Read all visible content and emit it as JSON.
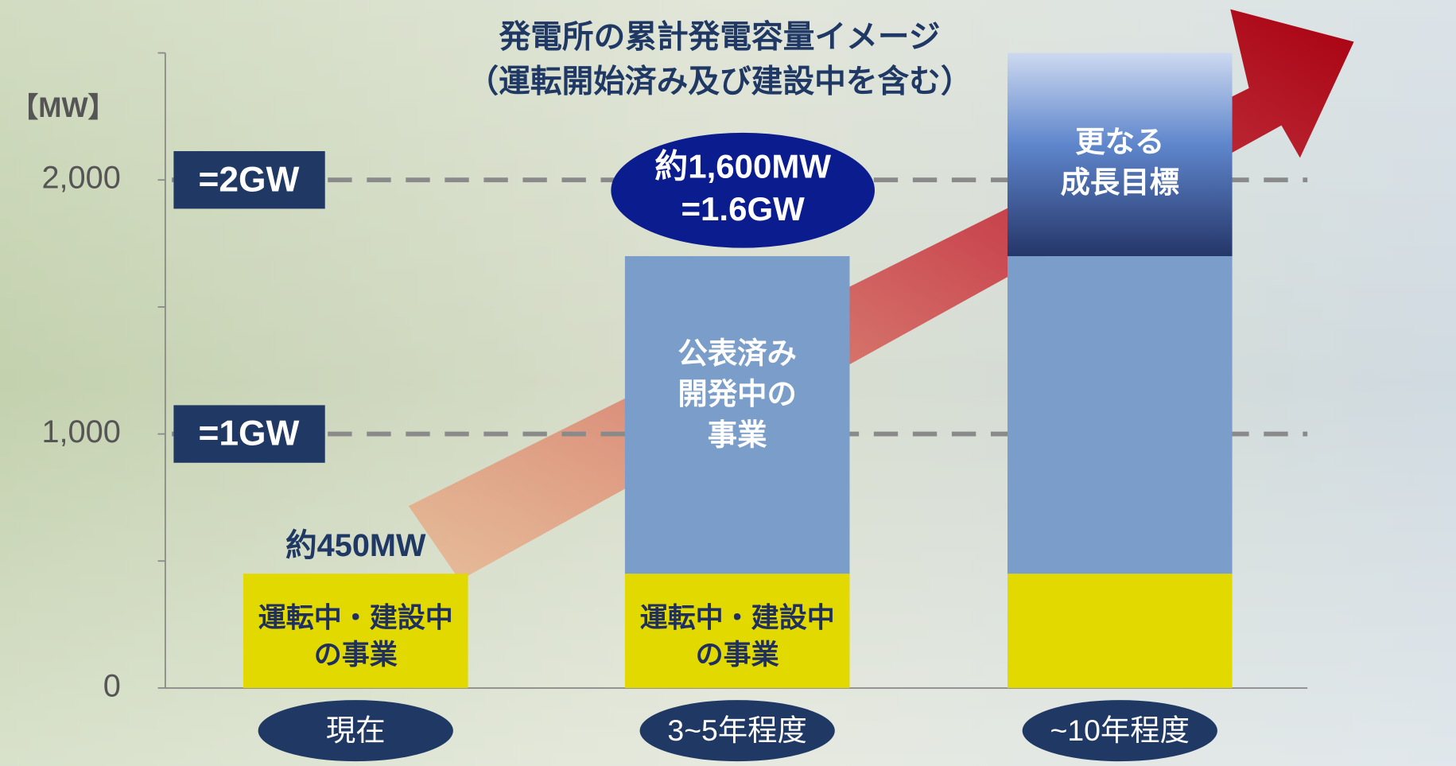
{
  "chart_data": {
    "type": "stacked_bar",
    "title": [
      "発電所の累計発電容量イメージ",
      "（運転開始済み及び建設中を含む）"
    ],
    "y_unit": "【MW】",
    "categories": [
      "現在",
      "3~5年程度",
      "~10年程度"
    ],
    "series": [
      {
        "color": "#e1d900",
        "values": [
          450,
          450,
          450
        ],
        "labels": [
          [
            "運転中・建設中",
            "の事業"
          ],
          [
            "運転中・建設中",
            "の事業"
          ],
          null
        ]
      },
      {
        "color": "#7b9dca",
        "values": [
          0,
          1250,
          1250
        ],
        "labels": [
          null,
          [
            "公表済み",
            "開発中の",
            "事業"
          ],
          null
        ]
      },
      {
        "color": "gradient",
        "values": [
          0,
          0,
          800
        ],
        "labels": [
          null,
          null,
          [
            "更なる",
            "成長目標"
          ]
        ]
      }
    ],
    "ylim": [
      0,
      2500
    ],
    "yticks": [
      0,
      {
        "value": 1000,
        "label": "1,000"
      },
      {
        "value": 2000,
        "label": "2,000"
      }
    ],
    "minor_yticks": [
      500,
      1500,
      2500
    ],
    "reference_lines": [
      {
        "value": 2000,
        "label": "=2GW"
      },
      {
        "value": 1000,
        "label": "=1GW"
      }
    ],
    "annotations": [
      [
        "約450MW"
      ],
      [
        "約1,600MW",
        "=1.6GW"
      ]
    ]
  }
}
